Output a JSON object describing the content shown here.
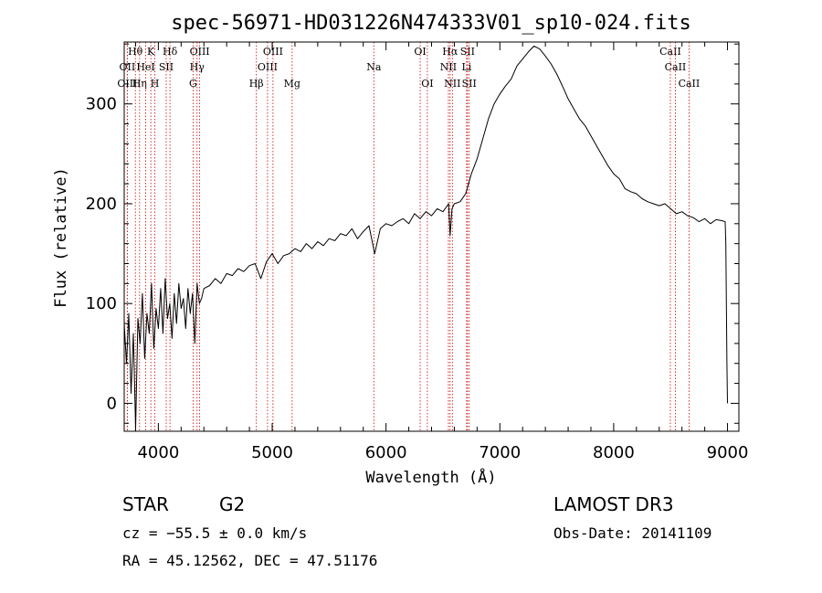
{
  "chart_data": {
    "type": "line",
    "title": "spec-56971-HD031226N474333V01_sp10-024.fits",
    "xlabel": "Wavelength (Å)",
    "ylabel": "Flux (relative)",
    "xlim": [
      3700,
      9100
    ],
    "ylim": [
      -28,
      362
    ],
    "xticks": [
      4000,
      5000,
      6000,
      7000,
      8000,
      9000
    ],
    "yticks": [
      0,
      100,
      200,
      300
    ],
    "series": [
      {
        "name": "flux",
        "x": [
          3700,
          3720,
          3740,
          3760,
          3780,
          3800,
          3820,
          3840,
          3860,
          3880,
          3900,
          3920,
          3940,
          3960,
          3980,
          4000,
          4020,
          4040,
          4060,
          4080,
          4100,
          4120,
          4140,
          4160,
          4180,
          4200,
          4220,
          4240,
          4260,
          4280,
          4300,
          4320,
          4340,
          4360,
          4380,
          4400,
          4450,
          4500,
          4550,
          4600,
          4650,
          4700,
          4750,
          4800,
          4850,
          4900,
          4950,
          5000,
          5050,
          5100,
          5150,
          5200,
          5250,
          5300,
          5350,
          5400,
          5450,
          5500,
          5550,
          5600,
          5650,
          5700,
          5750,
          5800,
          5850,
          5900,
          5950,
          6000,
          6050,
          6100,
          6150,
          6200,
          6250,
          6300,
          6350,
          6400,
          6450,
          6500,
          6550,
          6563,
          6580,
          6600,
          6650,
          6700,
          6750,
          6800,
          6850,
          6900,
          6950,
          7000,
          7050,
          7100,
          7150,
          7200,
          7250,
          7300,
          7350,
          7400,
          7450,
          7500,
          7550,
          7600,
          7650,
          7700,
          7750,
          7800,
          7850,
          7900,
          7950,
          8000,
          8050,
          8100,
          8150,
          8200,
          8250,
          8300,
          8350,
          8400,
          8450,
          8500,
          8550,
          8600,
          8650,
          8700,
          8750,
          8800,
          8850,
          8900,
          8950,
          8980,
          8985,
          8990,
          8995,
          9000
        ],
        "y": [
          80,
          40,
          90,
          10,
          70,
          -25,
          85,
          60,
          110,
          45,
          90,
          70,
          120,
          55,
          95,
          75,
          115,
          70,
          125,
          85,
          100,
          65,
          110,
          80,
          120,
          95,
          105,
          75,
          115,
          90,
          110,
          60,
          120,
          100,
          105,
          115,
          118,
          125,
          120,
          130,
          128,
          135,
          132,
          138,
          140,
          125,
          142,
          150,
          140,
          148,
          150,
          155,
          152,
          160,
          155,
          162,
          158,
          165,
          163,
          170,
          168,
          175,
          165,
          172,
          178,
          150,
          175,
          180,
          178,
          182,
          185,
          180,
          190,
          185,
          192,
          188,
          195,
          192,
          200,
          168,
          195,
          200,
          202,
          210,
          230,
          245,
          265,
          285,
          300,
          310,
          318,
          325,
          338,
          345,
          352,
          358,
          355,
          348,
          340,
          330,
          318,
          305,
          295,
          285,
          278,
          268,
          258,
          248,
          238,
          230,
          225,
          215,
          212,
          210,
          205,
          202,
          200,
          198,
          200,
          195,
          190,
          192,
          188,
          186,
          182,
          185,
          180,
          184,
          183,
          182,
          160,
          100,
          40,
          0
        ]
      }
    ],
    "spectral_lines": [
      {
        "label": "Hθ",
        "wavelength": 3798,
        "row": 1
      },
      {
        "label": "OII",
        "wavelength": 3727,
        "row": 2
      },
      {
        "label": "OIII",
        "wavelength": 3727,
        "row": 3
      },
      {
        "label": "Hη",
        "wavelength": 3835,
        "row": 3
      },
      {
        "label": "K",
        "wavelength": 3934,
        "row": 1
      },
      {
        "label": "H",
        "wavelength": 3969,
        "row": 3
      },
      {
        "label": "HeI",
        "wavelength": 3889,
        "row": 2
      },
      {
        "label": "SII",
        "wavelength": 4069,
        "row": 2
      },
      {
        "label": "Hδ",
        "wavelength": 4102,
        "row": 1
      },
      {
        "label": "OIII",
        "wavelength": 4363,
        "row": 1
      },
      {
        "label": "Hγ",
        "wavelength": 4340,
        "row": 2
      },
      {
        "label": "G",
        "wavelength": 4305,
        "row": 3
      },
      {
        "label": "Hβ",
        "wavelength": 4861,
        "row": 3
      },
      {
        "label": "OIII",
        "wavelength": 5007,
        "row": 1
      },
      {
        "label": "OIII",
        "wavelength": 4959,
        "row": 2
      },
      {
        "label": "Mg",
        "wavelength": 5175,
        "row": 3
      },
      {
        "label": "Na",
        "wavelength": 5893,
        "row": 2
      },
      {
        "label": "OI",
        "wavelength": 6300,
        "row": 1
      },
      {
        "label": "OI",
        "wavelength": 6363,
        "row": 3
      },
      {
        "label": "Hα",
        "wavelength": 6563,
        "row": 1
      },
      {
        "label": "NII",
        "wavelength": 6548,
        "row": 2
      },
      {
        "label": "NII",
        "wavelength": 6583,
        "row": 3
      },
      {
        "label": "SII",
        "wavelength": 6716,
        "row": 1
      },
      {
        "label": "Li",
        "wavelength": 6708,
        "row": 2
      },
      {
        "label": "SII",
        "wavelength": 6731,
        "row": 3
      },
      {
        "label": "CaII",
        "wavelength": 8498,
        "row": 1
      },
      {
        "label": "CaII",
        "wavelength": 8542,
        "row": 2
      },
      {
        "label": "CaII",
        "wavelength": 8662,
        "row": 3
      }
    ]
  },
  "info": {
    "class_label": "STAR",
    "subclass": "G2",
    "survey": "LAMOST DR3",
    "redshift": "cz = −55.5 ± 0.0 km/s",
    "obs_date": "Obs-Date: 20141109",
    "coords": "RA =  45.12562, DEC =  47.51176"
  },
  "colors": {
    "line_marker": "#cc0000",
    "spectrum": "#000000",
    "axes": "#000000"
  }
}
